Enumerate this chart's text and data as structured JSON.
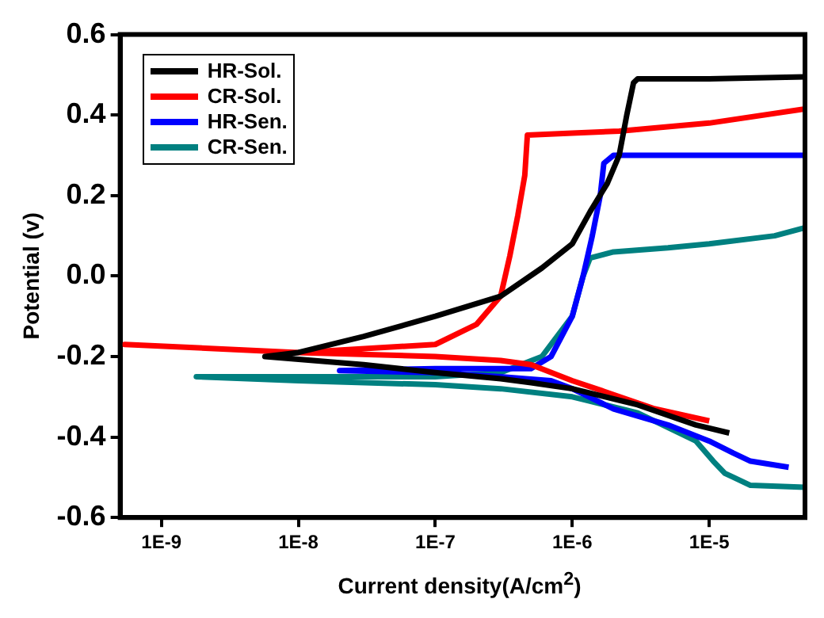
{
  "chart_data": {
    "type": "line",
    "xlabel": "Current density(A/cm$^{2}$)",
    "ylabel": "Potential (v)",
    "log": "x",
    "xlim": [
      5e-10,
      5e-05
    ],
    "xticks": [
      {
        "value": 1e-09,
        "label": "1E-9"
      },
      {
        "value": 1e-08,
        "label": "1E-8"
      },
      {
        "value": 1e-07,
        "label": "1E-7"
      },
      {
        "value": 1e-06,
        "label": "1E-6"
      },
      {
        "value": 1e-05,
        "label": "1E-5"
      }
    ],
    "ylim": [
      -0.6,
      0.6
    ],
    "yticks": [
      -0.6,
      -0.4,
      -0.2,
      {
        "value": 0,
        "label": "0.0"
      },
      0.2,
      0.4,
      0.6
    ],
    "grid": false,
    "legend": "top left",
    "line_style": "solid",
    "marker": "none",
    "series": [
      {
        "name": "HR-Sol.",
        "color": "#000000",
        "x": [
          1.4e-05,
          8e-06,
          3e-06,
          1e-06,
          5e-07,
          3e-07,
          1e-07,
          3e-08,
          5.7e-09,
          1e-08,
          3e-08,
          1e-07,
          3e-07,
          6e-07,
          1e-06,
          1.35e-06,
          1.8e-06,
          2.2e-06,
          2.5e-06,
          2.8e-06,
          3e-06,
          1e-05,
          5e-05
        ],
        "values": [
          -0.39,
          -0.37,
          -0.32,
          -0.28,
          -0.265,
          -0.255,
          -0.24,
          -0.22,
          -0.2,
          -0.19,
          -0.15,
          -0.1,
          -0.05,
          0.02,
          0.08,
          0.16,
          0.23,
          0.3,
          0.4,
          0.48,
          0.49,
          0.49,
          0.495
        ]
      },
      {
        "name": "CR-Sol.",
        "color": "#ff0000",
        "x": [
          1e-05,
          4e-06,
          1.65e-06,
          1e-06,
          5e-07,
          3e-07,
          1e-07,
          1e-08,
          5.4e-10,
          1e-08,
          1e-07,
          2e-07,
          3e-07,
          3.5e-07,
          4e-07,
          4.5e-07,
          4.7e-07,
          1e-06,
          2.2e-06,
          1e-05,
          5e-05
        ],
        "values": [
          -0.36,
          -0.33,
          -0.285,
          -0.26,
          -0.22,
          -0.21,
          -0.2,
          -0.19,
          -0.17,
          -0.19,
          -0.17,
          -0.12,
          -0.05,
          0.05,
          0.15,
          0.25,
          0.35,
          0.355,
          0.36,
          0.38,
          0.415
        ]
      },
      {
        "name": "HR-Sen.",
        "color": "#0000ff",
        "x": [
          3.8e-05,
          2e-05,
          1.5e-05,
          1e-05,
          5e-06,
          2e-06,
          1e-06,
          7e-07,
          3e-07,
          1e-07,
          2e-08,
          1e-07,
          5e-07,
          7e-07,
          1e-06,
          1.2e-06,
          1.4e-06,
          1.6e-06,
          1.7e-06,
          2e-06,
          1e-05,
          5e-05
        ],
        "values": [
          -0.475,
          -0.46,
          -0.44,
          -0.41,
          -0.37,
          -0.33,
          -0.28,
          -0.26,
          -0.25,
          -0.24,
          -0.235,
          -0.23,
          -0.23,
          -0.2,
          -0.1,
          0.0,
          0.1,
          0.2,
          0.28,
          0.3,
          0.3,
          0.3
        ]
      },
      {
        "name": "CR-Sen.",
        "color": "#008080",
        "x": [
          5e-05,
          2e-05,
          1.5e-05,
          1.3e-05,
          1.07e-05,
          8e-06,
          3e-06,
          1e-06,
          3e-07,
          1e-07,
          1e-08,
          1.8e-09,
          1e-08,
          1e-07,
          3e-07,
          6e-07,
          1e-06,
          1.2e-06,
          1.35e-06,
          2e-06,
          5e-06,
          1e-05,
          3e-05,
          5e-05
        ],
        "values": [
          -0.525,
          -0.52,
          -0.5,
          -0.49,
          -0.46,
          -0.41,
          -0.34,
          -0.3,
          -0.28,
          -0.27,
          -0.26,
          -0.25,
          -0.25,
          -0.25,
          -0.24,
          -0.2,
          -0.1,
          0.0,
          0.045,
          0.06,
          0.07,
          0.08,
          0.1,
          0.12
        ]
      }
    ]
  }
}
